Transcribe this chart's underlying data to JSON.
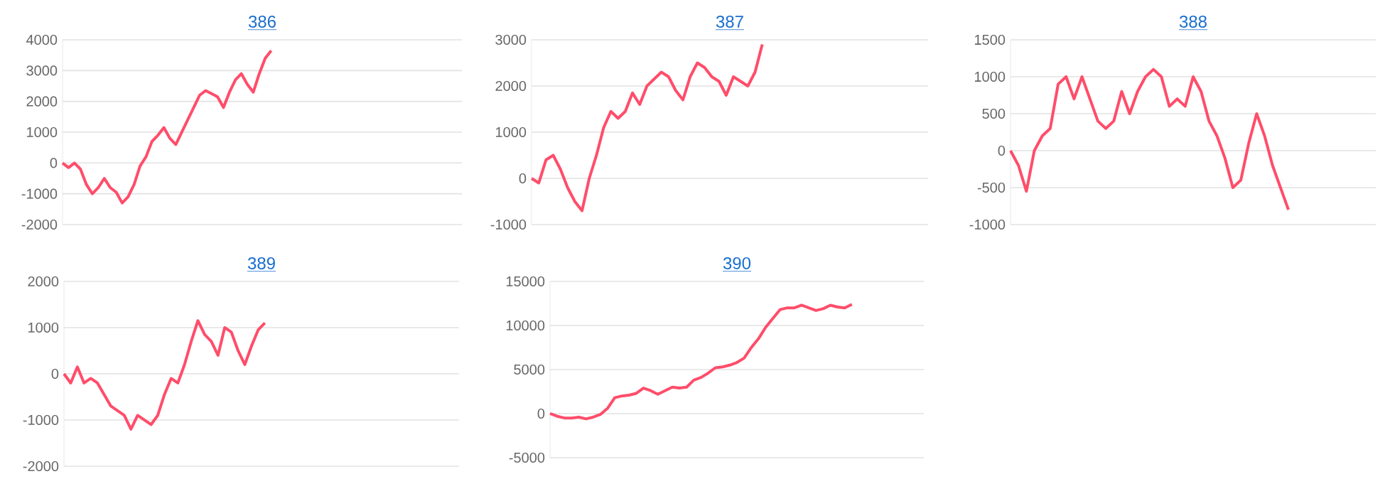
{
  "chart_data": [
    {
      "type": "line",
      "title": "386",
      "tick_labels": "y",
      "grid": "y",
      "ylim": [
        -2000,
        4000
      ],
      "yticks": [
        -2000,
        -1000,
        0,
        1000,
        2000,
        3000,
        4000
      ],
      "categories": [
        null,
        null,
        null,
        null,
        null,
        null,
        null,
        null,
        null,
        null,
        null,
        null,
        null,
        null,
        null,
        null,
        null,
        null,
        null,
        null,
        null,
        null,
        null,
        null,
        null,
        null,
        null,
        null,
        null,
        null,
        null,
        null,
        null,
        null,
        null,
        null,
        null,
        null,
        null,
        null,
        null,
        null,
        null,
        null,
        null,
        null,
        null,
        null,
        null,
        null,
        null,
        null,
        null,
        null,
        null,
        null,
        null,
        null,
        null,
        null,
        null,
        null,
        null,
        null,
        null,
        null,
        null,
        null
      ],
      "series": [
        {
          "color": "#ff4d6a",
          "values": [
            0,
            -150,
            0,
            -200,
            -700,
            -1000,
            -800,
            -500,
            -800,
            -950,
            -1300,
            -1100,
            -700,
            -100,
            200,
            700,
            900,
            1150,
            800,
            600,
            1000,
            1400,
            1800,
            2200,
            2350,
            2250,
            2150,
            1800,
            2300,
            2700,
            2900,
            2550,
            2300,
            2900,
            3400,
            3650,
            null,
            null,
            null,
            null,
            null,
            null,
            null,
            null,
            null,
            null,
            null,
            null,
            null,
            null,
            null,
            null,
            null,
            null,
            null,
            null,
            null,
            null,
            null,
            null,
            null,
            null,
            null,
            null,
            null,
            null,
            null,
            null
          ]
        }
      ]
    },
    {
      "type": "line",
      "title": "387",
      "tick_labels": "y",
      "grid": "y",
      "ylim": [
        -1000,
        3000
      ],
      "yticks": [
        -1000,
        0,
        1000,
        2000,
        3000
      ],
      "categories": [
        null,
        null,
        null,
        null,
        null,
        null,
        null,
        null,
        null,
        null,
        null,
        null,
        null,
        null,
        null,
        null,
        null,
        null,
        null,
        null,
        null,
        null,
        null,
        null,
        null,
        null,
        null,
        null,
        null,
        null,
        null,
        null,
        null,
        null,
        null,
        null,
        null,
        null,
        null,
        null,
        null,
        null,
        null,
        null,
        null,
        null,
        null,
        null,
        null,
        null,
        null,
        null,
        null,
        null,
        null,
        null
      ],
      "series": [
        {
          "color": "#ff4d6a",
          "values": [
            0,
            -100,
            400,
            500,
            200,
            -200,
            -500,
            -700,
            0,
            500,
            1100,
            1450,
            1300,
            1450,
            1850,
            1600,
            2000,
            2150,
            2300,
            2200,
            1900,
            1700,
            2200,
            2500,
            2400,
            2200,
            2100,
            1800,
            2200,
            2100,
            2000,
            2300,
            2900,
            null,
            null,
            null,
            null,
            null,
            null,
            null,
            null,
            null,
            null,
            null,
            null,
            null,
            null,
            null,
            null,
            null,
            null,
            null,
            null,
            null,
            null,
            null
          ]
        }
      ]
    },
    {
      "type": "line",
      "title": "388",
      "tick_labels": "y",
      "grid": "y",
      "ylim": [
        -1000,
        1500
      ],
      "yticks": [
        -1000,
        -500,
        0,
        500,
        1000,
        1500
      ],
      "categories": [
        null,
        null,
        null,
        null,
        null,
        null,
        null,
        null,
        null,
        null,
        null,
        null,
        null,
        null,
        null,
        null,
        null,
        null,
        null,
        null,
        null,
        null,
        null,
        null,
        null,
        null,
        null,
        null,
        null,
        null,
        null,
        null,
        null,
        null,
        null,
        null,
        null,
        null,
        null,
        null,
        null,
        null,
        null,
        null,
        null,
        null,
        null
      ],
      "series": [
        {
          "color": "#ff4d6a",
          "values": [
            0,
            -200,
            -550,
            0,
            200,
            300,
            900,
            1000,
            700,
            1000,
            700,
            400,
            300,
            400,
            800,
            500,
            800,
            1000,
            1100,
            1000,
            600,
            700,
            600,
            1000,
            800,
            400,
            200,
            -100,
            -500,
            -400,
            100,
            500,
            200,
            -200,
            -500,
            -800,
            null,
            null,
            null,
            null,
            null,
            null,
            null,
            null,
            null,
            null,
            null
          ]
        }
      ]
    },
    {
      "type": "line",
      "title": "389",
      "tick_labels": "y",
      "grid": "y",
      "ylim": [
        -2000,
        2000
      ],
      "yticks": [
        -2000,
        -1000,
        0,
        1000,
        2000
      ],
      "categories": [
        null,
        null,
        null,
        null,
        null,
        null,
        null,
        null,
        null,
        null,
        null,
        null,
        null,
        null,
        null,
        null,
        null,
        null,
        null,
        null,
        null,
        null,
        null,
        null,
        null,
        null,
        null,
        null,
        null,
        null,
        null,
        null,
        null,
        null,
        null,
        null,
        null,
        null,
        null,
        null,
        null,
        null,
        null,
        null,
        null,
        null,
        null,
        null,
        null,
        null,
        null,
        null,
        null,
        null,
        null,
        null,
        null,
        null,
        null,
        null
      ],
      "series": [
        {
          "color": "#ff4d6a",
          "values": [
            0,
            -200,
            150,
            -200,
            -100,
            -200,
            -450,
            -700,
            -800,
            -900,
            -1200,
            -900,
            -1000,
            -1100,
            -900,
            -450,
            -100,
            -200,
            200,
            700,
            1150,
            850,
            700,
            400,
            1000,
            900,
            500,
            200,
            600,
            950,
            1100,
            null,
            null,
            null,
            null,
            null,
            null,
            null,
            null,
            null,
            null,
            null,
            null,
            null,
            null,
            null,
            null,
            null,
            null,
            null,
            null,
            null,
            null,
            null,
            null,
            null,
            null,
            null,
            null,
            null
          ]
        }
      ]
    },
    {
      "type": "line",
      "title": "390",
      "tick_labels": "y",
      "grid": "y",
      "ylim": [
        -5000,
        15000
      ],
      "yticks": [
        -5000,
        0,
        5000,
        10000,
        15000
      ],
      "categories": [
        null,
        null,
        null,
        null,
        null,
        null,
        null,
        null,
        null,
        null,
        null,
        null,
        null,
        null,
        null,
        null,
        null,
        null,
        null,
        null,
        null,
        null,
        null,
        null,
        null,
        null,
        null,
        null,
        null,
        null,
        null,
        null,
        null,
        null,
        null,
        null,
        null,
        null,
        null,
        null,
        null,
        null,
        null,
        null,
        null,
        null,
        null,
        null,
        null,
        null,
        null,
        null,
        null
      ],
      "series": [
        {
          "color": "#ff4d6a",
          "values": [
            0,
            -300,
            -500,
            -500,
            -400,
            -600,
            -400,
            -100,
            600,
            1800,
            2000,
            2100,
            2300,
            2900,
            2600,
            2200,
            2600,
            3000,
            2900,
            3000,
            3800,
            4100,
            4600,
            5200,
            5300,
            5500,
            5800,
            6300,
            7500,
            8500,
            9800,
            10800,
            11800,
            12000,
            12000,
            12300,
            12000,
            11700,
            11900,
            12300,
            12100,
            12000,
            12400,
            null,
            null,
            null,
            null,
            null,
            null,
            null,
            null,
            null,
            null
          ]
        }
      ]
    }
  ]
}
